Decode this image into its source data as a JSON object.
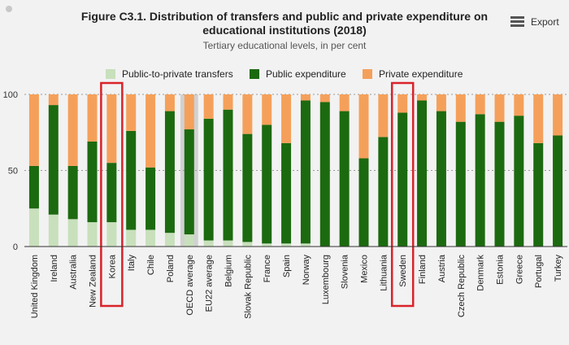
{
  "header": {
    "title_line1": "Figure C3.1. Distribution of transfers and public and private expenditure on",
    "title_line2": "educational institutions (2018)",
    "subtitle": "Tertiary educational levels, in per cent",
    "export_label": "Export"
  },
  "colors": {
    "public": "#1c6a10",
    "transfers": "#c8e0bc",
    "private": "#f5a05a",
    "highlight_box": "#d9232a",
    "average_band": "#c8c8c8"
  },
  "chart_data": {
    "type": "bar",
    "stacked": true,
    "title": "Figure C3.1. Distribution of transfers and public and private expenditure on educational institutions (2018)",
    "subtitle": "Tertiary educational levels, in per cent",
    "ylim": [
      0,
      100
    ],
    "yticks": [
      0,
      50,
      100
    ],
    "grid": true,
    "legend_position": "top",
    "categories": [
      "United Kingdom",
      "Ireland",
      "Australia",
      "New Zealand",
      "Korea",
      "Italy",
      "Chile",
      "Poland",
      "OECD average",
      "EU22 average",
      "Belgium",
      "Slovak Republic",
      "France",
      "Spain",
      "Norway",
      "Luxembourg",
      "Slovenia",
      "Mexico",
      "Lithuania",
      "Sweden",
      "Finland",
      "Austria",
      "Czech Republic",
      "Denmark",
      "Estonia",
      "Greece",
      "Portugal",
      "Turkey"
    ],
    "series": [
      {
        "name": "Public-to-private transfers",
        "values": [
          25,
          21,
          18,
          16,
          16,
          11,
          11,
          9,
          8,
          4,
          4,
          3,
          2,
          2,
          2,
          0,
          0,
          0,
          0,
          0,
          0,
          0,
          0,
          0,
          0,
          0,
          0,
          0
        ]
      },
      {
        "name": "Public expenditure",
        "values": [
          28,
          72,
          35,
          53,
          39,
          65,
          41,
          80,
          69,
          80,
          86,
          71,
          78,
          66,
          94,
          95,
          89,
          58,
          72,
          88,
          96,
          89,
          82,
          87,
          82,
          86,
          68,
          73
        ]
      },
      {
        "name": "Private expenditure",
        "values": [
          47,
          7,
          47,
          31,
          45,
          24,
          48,
          11,
          23,
          16,
          10,
          26,
          20,
          32,
          4,
          5,
          11,
          42,
          28,
          12,
          4,
          11,
          18,
          13,
          18,
          14,
          32,
          27
        ]
      }
    ],
    "highlighted": [
      "Korea",
      "Sweden"
    ],
    "average_categories": [
      "OECD average"
    ]
  }
}
